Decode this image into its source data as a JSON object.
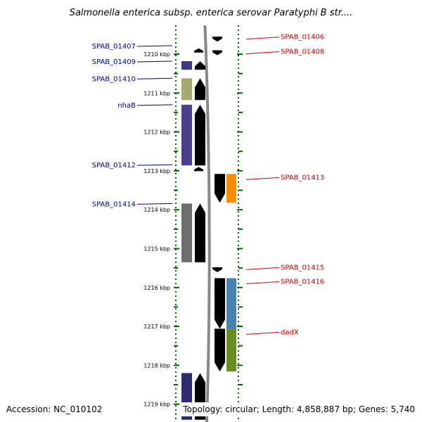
{
  "title": "Salmonella enterica subsp. enterica serovar Paratyphi B str....",
  "accession": "Accession: NC_010102",
  "topology": "Topology: circular; Length: 4,858,887 bp; Genes: 5,740",
  "ruler": [
    {
      "label": "1210 kbp",
      "kbp": 1210
    },
    {
      "label": "1211 kbp",
      "kbp": 1211
    },
    {
      "label": "1212 kbp",
      "kbp": 1212
    },
    {
      "label": "1213 kbp",
      "kbp": 1213
    },
    {
      "label": "1214 kbp",
      "kbp": 1214
    },
    {
      "label": "1215 kbp",
      "kbp": 1215
    },
    {
      "label": "1216 kbp",
      "kbp": 1216
    },
    {
      "label": "1217 kbp",
      "kbp": 1217
    },
    {
      "label": "1218 kbp",
      "kbp": 1218
    },
    {
      "label": "1219 kbp",
      "kbp": 1219
    }
  ],
  "colors": {
    "reverse_cds": "#0000ff",
    "forward_cds": "#ff0000",
    "reverse_label": "#00008b",
    "forward_label": "#cc0000",
    "tick": "#006400",
    "backbone": "#888888"
  },
  "reverse_genes": [
    {
      "name": "SPAB_01407",
      "start": 1209.85,
      "end": 1209.93,
      "cog_color": ""
    },
    {
      "name": "SPAB_01409",
      "start": 1210.18,
      "end": 1210.4,
      "cog_color": "#3d3a80"
    },
    {
      "name": "SPAB_01410",
      "start": 1210.62,
      "end": 1211.18,
      "cog_color": "#a9a872"
    },
    {
      "name": "nhaB",
      "start": 1211.3,
      "end": 1212.86,
      "cog_color": "#4a3f8c"
    },
    {
      "name": "SPAB_01412",
      "start": 1212.9,
      "end": 1213.0,
      "cog_color": ""
    },
    {
      "name": "SPAB_01414",
      "start": 1213.84,
      "end": 1215.35,
      "cog_color": "#6e6e6e"
    },
    {
      "name": "",
      "start": 1218.2,
      "end": 1219.4,
      "cog_color": "#2e2a70"
    }
  ],
  "forward_genes": [
    {
      "name": "SPAB_01406",
      "start": 1209.55,
      "end": 1209.68,
      "cog_color": ""
    },
    {
      "name": "SPAB_01408",
      "start": 1209.9,
      "end": 1210.08,
      "cog_color": ""
    },
    {
      "name": "SPAB_01413",
      "start": 1213.08,
      "end": 1213.82,
      "cog_color": "#ff8c00"
    },
    {
      "name": "SPAB_01415",
      "start": 1215.48,
      "end": 1215.6,
      "cog_color": ""
    },
    {
      "name": "SPAB_01416",
      "start": 1215.76,
      "end": 1217.06,
      "cog_color": "#4682b4"
    },
    {
      "name": "dadX",
      "start": 1217.06,
      "end": 1218.16,
      "cog_color": "#6b8e23"
    },
    {
      "name": "",
      "start": 1208.8,
      "end": 1209.08,
      "cog_color": "#999999"
    }
  ]
}
